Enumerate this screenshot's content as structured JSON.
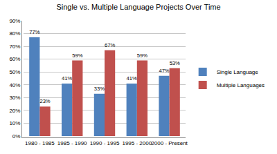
{
  "chart_data": {
    "type": "bar",
    "title": "Single vs. Multiple Language Projects Over Time",
    "categories": [
      "1980 - 1985",
      "1985 - 1990",
      "1990 - 1995",
      "1995 - 2000",
      "2000 - Present"
    ],
    "series": [
      {
        "name": "Single Language",
        "color": "#4f81bd",
        "values": [
          77,
          41,
          33,
          41,
          47
        ],
        "value_labels": [
          "77%",
          "41%",
          "33%",
          "41%",
          "47%"
        ]
      },
      {
        "name": "Multiple Languages",
        "color": "#c0504d",
        "values": [
          23,
          59,
          67,
          59,
          53
        ],
        "value_labels": [
          "23%",
          "59%",
          "67%",
          "59%",
          "53%"
        ]
      }
    ],
    "ylim": [
      0,
      90
    ],
    "yticks": [
      {
        "value": 0,
        "label": "0%"
      },
      {
        "value": 10,
        "label": "10%"
      },
      {
        "value": 20,
        "label": "20%"
      },
      {
        "value": 30,
        "label": "30%"
      },
      {
        "value": 40,
        "label": "40%"
      },
      {
        "value": 50,
        "label": "50%"
      },
      {
        "value": 60,
        "label": "60%"
      },
      {
        "value": 70,
        "label": "70%"
      },
      {
        "value": 80,
        "label": "80%"
      },
      {
        "value": 90,
        "label": "90%"
      }
    ],
    "grid": true,
    "legend": "right",
    "data_labels": true
  }
}
